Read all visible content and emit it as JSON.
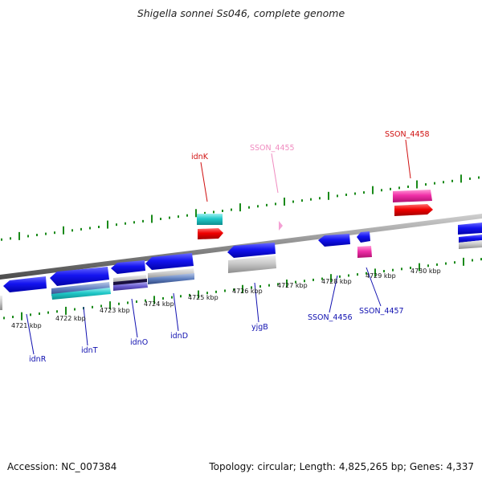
{
  "title": "Shigella sonnei Ss046, complete genome",
  "footer": {
    "accession": "Accession: NC_007384",
    "summary": "Topology: circular; Length: 4,825,265 bp; Genes: 4,337"
  },
  "colors": {
    "backbone": "#8a8a8a",
    "ticks": "#1a8a1a",
    "forward_label": "#d01010",
    "pink_label": "#f08cc0",
    "reverse_label": "#1010b0"
  },
  "scale_labels": [
    "4721 kbp",
    "4722 kbp",
    "4723 kbp",
    "4724 kbp",
    "4725 kbp",
    "4726 kbp",
    "4727 kbp",
    "4728 kbp",
    "4729 kbp",
    "4730 kbp"
  ],
  "forward_genes": [
    {
      "label": "idnK",
      "color": "red"
    },
    {
      "label": "SSON_4455",
      "color": "pink"
    },
    {
      "label": "SSON_4458",
      "color": "red"
    }
  ],
  "reverse_genes": [
    {
      "label": "idnR"
    },
    {
      "label": "idnT"
    },
    {
      "label": "idnO"
    },
    {
      "label": "idnD"
    },
    {
      "label": "yjgB"
    },
    {
      "label": "SSON_4456"
    },
    {
      "label": "SSON_4457"
    }
  ]
}
